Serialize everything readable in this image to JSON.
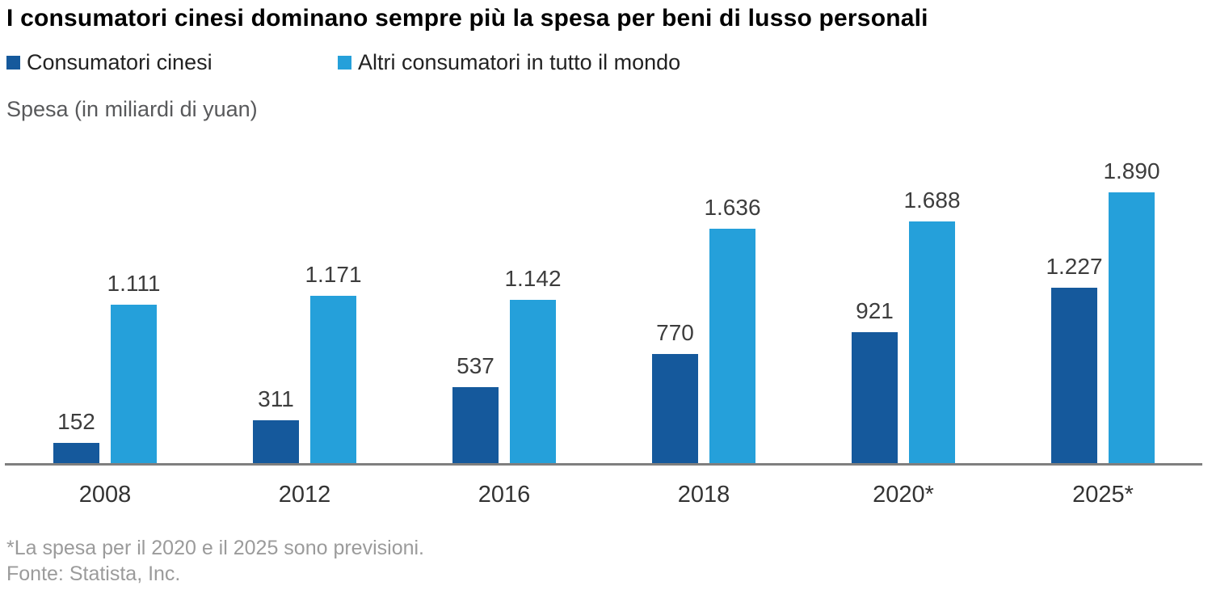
{
  "title": "I consumatori cinesi dominano sempre più la spesa per beni di lusso personali",
  "legend": [
    {
      "label": "Consumatori cinesi",
      "color": "#15599c"
    },
    {
      "label": "Altri consumatori in tutto il mondo",
      "color": "#25a0da"
    }
  ],
  "unit_label": "Spesa (in miliardi di yuan)",
  "footnote": {
    "line1": "*La spesa per il 2020 e il 2025 sono previsioni.",
    "line2": "Fonte: Statista, Inc."
  },
  "chart_data": {
    "type": "bar",
    "title": "I consumatori cinesi dominano sempre più la spesa per beni di lusso personali",
    "categories": [
      "2008",
      "2012",
      "2016",
      "2018",
      "2020*",
      "2025*"
    ],
    "series": [
      {
        "name": "Consumatori cinesi",
        "color": "#15599c",
        "values": [
          152,
          311,
          537,
          770,
          921,
          1227
        ],
        "labels": [
          "152",
          "311",
          "537",
          "770",
          "921",
          "1.227"
        ]
      },
      {
        "name": "Altri consumatori in tutto il mondo",
        "color": "#25a0da",
        "values": [
          1111,
          1171,
          1142,
          1636,
          1688,
          1890
        ],
        "labels": [
          "1.111",
          "1.171",
          "1.142",
          "1.636",
          "1.688",
          "1.890"
        ]
      }
    ],
    "xlabel": "",
    "ylabel": "Spesa (in miliardi di yuan)",
    "ylim": [
      0,
      2000
    ],
    "grid": false,
    "legend_position": "top",
    "value_labels": true,
    "notes": [
      "*La spesa per il 2020 e il 2025 sono previsioni.",
      "Fonte: Statista, Inc."
    ]
  }
}
